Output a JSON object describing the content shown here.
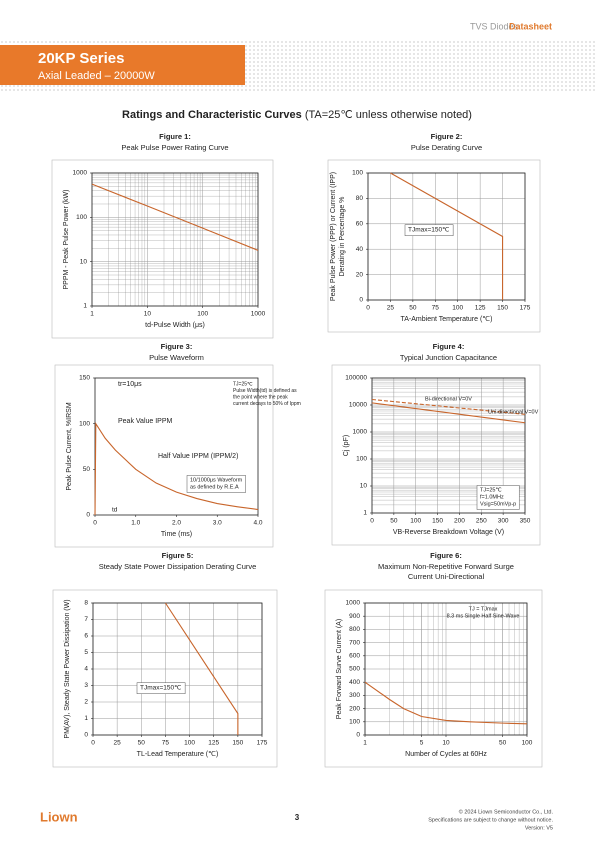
{
  "header": {
    "category": "TVS Diodes",
    "doc_type": "Datasheet",
    "series": "20KP Series",
    "subtitle": "Axial Leaded – 20000W"
  },
  "section": {
    "title": "Ratings and Characteristic Curves",
    "condition": "(TA=25℃ unless otherwise noted)"
  },
  "chart_data": [
    {
      "type": "line",
      "title": "Figure 1:",
      "subtitle": [
        "Peak Pulse Power Rating Curve"
      ],
      "xlabel": "td-Pulse Width (μs)",
      "ylabel": [
        "PPPM - Peak Pulse Power (kW)"
      ],
      "xlog": true,
      "ylog": true,
      "xlim": [
        1,
        1000
      ],
      "ylim": [
        1,
        1000
      ],
      "xticks": [
        1,
        10,
        100,
        1000
      ],
      "yticks": [
        1,
        10,
        100,
        1000
      ],
      "grid": true,
      "minor_grid": true,
      "x": [
        1,
        10,
        100,
        1000
      ],
      "series": [
        {
          "color": "#c8652b",
          "values": [
            560,
            180,
            57,
            18
          ]
        }
      ]
    },
    {
      "type": "line",
      "title": "Figure 2:",
      "subtitle": [
        "Pulse Derating Curve"
      ],
      "xlabel": "TA-Ambient Temperature (℃)",
      "ylabel": [
        "Peak Pulse Power (PPP) or Current (IPP)",
        "Derating in Percentage %"
      ],
      "xlim": [
        0,
        175
      ],
      "ylim": [
        0,
        100
      ],
      "xticks": [
        0,
        25,
        50,
        75,
        100,
        125,
        150,
        175
      ],
      "yticks": [
        0,
        20,
        40,
        60,
        80,
        100
      ],
      "grid": true,
      "x": [
        25,
        150,
        150
      ],
      "series": [
        {
          "color": "#c8652b",
          "values": [
            100,
            50,
            0
          ]
        }
      ],
      "annotations": [
        [
          "TJmax=150℃"
        ]
      ]
    },
    {
      "type": "line",
      "title": "Figure 3:",
      "subtitle": [
        "Pulse Waveform"
      ],
      "xlabel": "Time (ms)",
      "ylabel": [
        "Peak Pulse Current, %IRSM"
      ],
      "xlim": [
        0,
        4
      ],
      "ylim": [
        0,
        150
      ],
      "xticks": [
        0,
        {
          "value": 1,
          "label": "1.0"
        },
        {
          "value": 2,
          "label": "2.0"
        },
        {
          "value": 3,
          "label": "3.0"
        },
        {
          "value": 4,
          "label": "4.0"
        }
      ],
      "yticks": [
        0,
        50,
        100,
        150
      ],
      "grid": false,
      "x": [
        0,
        0.02,
        0.25,
        0.5,
        1,
        1.5,
        2,
        2.5,
        3,
        3.5,
        4
      ],
      "series": [
        {
          "color": "#c8652b",
          "values": [
            0,
            100,
            84,
            71,
            50,
            35,
            25,
            18,
            12.5,
            9,
            6
          ]
        }
      ],
      "annotations": [
        [
          "tr=10μs"
        ],
        [
          "Peak Value IPPM"
        ],
        [
          "Half Value IPPM (IPPM/2)"
        ],
        [
          "TJ=25℃",
          "Pulse Width(td) is defined as",
          "the point where the peak",
          "current decays to 50% of Ippm"
        ],
        [
          "10/1000μs Waveform",
          "as defined by R.E.A"
        ],
        [
          "td"
        ]
      ]
    },
    {
      "type": "line",
      "title": "Figure 4:",
      "subtitle": [
        "Typical Junction Capacitance"
      ],
      "xlabel": "VB-Reverse Breakdown Voltage (V)",
      "ylabel": [
        "Cj (pF)"
      ],
      "ylog": true,
      "xlim": [
        0,
        350
      ],
      "ylim": [
        1,
        100000
      ],
      "xticks": [
        0,
        50,
        100,
        150,
        200,
        250,
        300,
        350
      ],
      "yticks": [
        1,
        10,
        100,
        1000,
        10000,
        100000
      ],
      "grid": true,
      "minor_grid": true,
      "x": [
        0,
        350
      ],
      "series": [
        {
          "name": "Bi-directional V=0V",
          "color": "#c8652b",
          "dash": true,
          "values": [
            16000,
            4500
          ]
        },
        {
          "name": "Uni-directional V=0V",
          "color": "#c8652b",
          "values": [
            12000,
            2200
          ]
        }
      ],
      "annotations": [
        [
          "TJ=25℃",
          "f=1.0MHz",
          "Vsig=50mVp-p"
        ]
      ]
    },
    {
      "type": "line",
      "title": "Figure 5:",
      "subtitle": [
        "Steady State Power Dissipation Derating Curve"
      ],
      "xlabel": "TL-Lead Temperature (℃)",
      "ylabel": [
        "PM(AV), Steady State Power Dissipation (W)"
      ],
      "xlim": [
        0,
        175
      ],
      "ylim": [
        0,
        8
      ],
      "xticks": [
        0,
        25,
        50,
        75,
        100,
        125,
        150,
        175
      ],
      "yticks": [
        0,
        1,
        2,
        3,
        4,
        5,
        6,
        7,
        8
      ],
      "grid": true,
      "x": [
        75,
        150,
        150
      ],
      "series": [
        {
          "color": "#c8652b",
          "values": [
            8,
            1.3,
            0
          ]
        }
      ],
      "annotations": [
        [
          "TJmax=150℃"
        ]
      ]
    },
    {
      "type": "line",
      "title": "Figure 6:",
      "subtitle": [
        "Maximum Non-Repetitive Forward Surge",
        "Current Uni-Directional"
      ],
      "xlabel": "Number of Cycles at 60Hz",
      "ylabel": [
        "Peak Forward Surve Current (A)"
      ],
      "xlog": true,
      "xlim": [
        1,
        100
      ],
      "ylim": [
        0,
        1000
      ],
      "xticks": [
        1,
        5,
        10,
        50,
        100
      ],
      "yticks": [
        0,
        100,
        200,
        300,
        400,
        500,
        600,
        700,
        800,
        900,
        1000
      ],
      "grid": true,
      "minor_grid": true,
      "x": [
        1,
        2,
        3,
        5,
        10,
        20,
        50,
        100
      ],
      "series": [
        {
          "color": "#c8652b",
          "values": [
            400,
            270,
            200,
            140,
            110,
            100,
            90,
            85
          ]
        }
      ],
      "annotations": [
        [
          "TJ = TJmax",
          "8.3 ms Single Half Sine-Wave"
        ]
      ]
    }
  ],
  "footer": {
    "logo": "Liown",
    "page": "3",
    "copyright": "© 2024 Liown Semiconductor Co., Ltd.",
    "notice": "Specifications are subject to change without notice.",
    "version": "Version: V5"
  }
}
